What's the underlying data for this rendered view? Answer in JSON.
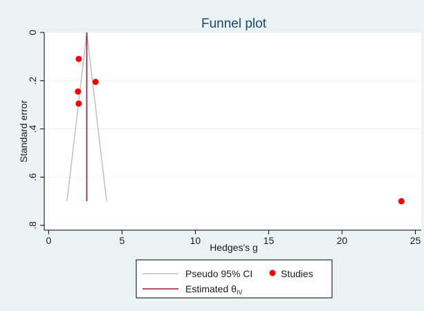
{
  "chart_data": {
    "type": "scatter",
    "title": "Funnel plot",
    "xlabel": "Hedges's g",
    "ylabel": "Standard error",
    "xlim": [
      -0.3,
      25.4
    ],
    "ylim": [
      0.82,
      0.0
    ],
    "y_axis_reversed": true,
    "x_ticks": [
      0,
      5,
      10,
      15,
      20,
      25
    ],
    "y_ticks": [
      0,
      0.2,
      0.4,
      0.6,
      0.8
    ],
    "x_tick_labels": [
      "0",
      "5",
      "10",
      "15",
      "20",
      "25"
    ],
    "y_tick_labels": [
      "0",
      ".2",
      ".4",
      ".6",
      ".8"
    ],
    "grid": "horizontal",
    "legend_position": "bottom",
    "studies": {
      "name": "Studies",
      "color": "#ff0000",
      "points": [
        {
          "x": 2.05,
          "y": 0.11
        },
        {
          "x": 3.2,
          "y": 0.205
        },
        {
          "x": 2.0,
          "y": 0.245
        },
        {
          "x": 2.05,
          "y": 0.295
        },
        {
          "x": 24.05,
          "y": 0.7
        }
      ]
    },
    "pseudo_ci": {
      "name": "Pseudo 95% CI",
      "color": "#bfbfbf",
      "left": [
        [
          2.6,
          0.0
        ],
        [
          1.25,
          0.7
        ]
      ],
      "right": [
        [
          2.6,
          0.0
        ],
        [
          3.95,
          0.7
        ]
      ]
    },
    "estimate": {
      "name": "Estimated θ",
      "subscript": "IV",
      "color": "#a0102a",
      "x": 2.6,
      "y_range": [
        0.0,
        0.7
      ]
    },
    "legend": [
      {
        "label": "Pseudo 95% CI",
        "kind": "line",
        "color": "#bfbfbf"
      },
      {
        "label": "Studies",
        "kind": "marker",
        "color": "#ff0000"
      },
      {
        "label": "Estimated θ",
        "subscript": "IV",
        "kind": "line",
        "color": "#a0102a"
      }
    ]
  }
}
